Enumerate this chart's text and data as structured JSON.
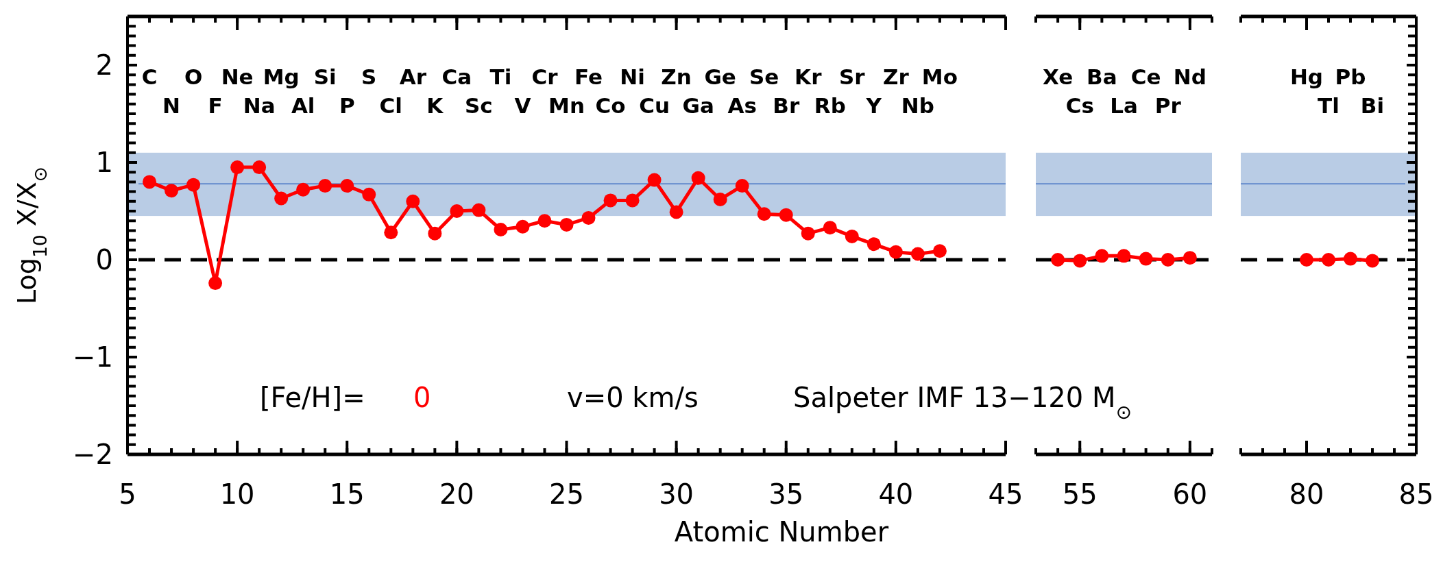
{
  "chart_data": [
    {
      "type": "line",
      "ylabel": "Log$_{10}$ X/X$_{⊙}$",
      "xlabel": "Atomic Number",
      "color": "#ff0000",
      "marker": "circle",
      "xlim": [
        5,
        45
      ],
      "xticks": [
        5,
        10,
        15,
        20,
        25,
        30,
        35,
        40,
        45
      ],
      "ylim": [
        -2,
        2.5
      ],
      "yticks": [
        -2,
        -1,
        0,
        1,
        2
      ],
      "x": [
        6,
        7,
        8,
        9,
        10,
        11,
        12,
        13,
        14,
        15,
        16,
        17,
        18,
        19,
        20,
        21,
        22,
        23,
        24,
        25,
        26,
        27,
        28,
        29,
        30,
        31,
        32,
        33,
        34,
        35,
        36,
        37,
        38,
        39,
        40,
        41,
        42
      ],
      "values": [
        0.8,
        0.71,
        0.77,
        -0.24,
        0.95,
        0.95,
        0.63,
        0.72,
        0.76,
        0.76,
        0.67,
        0.28,
        0.6,
        0.27,
        0.5,
        0.51,
        0.31,
        0.34,
        0.4,
        0.36,
        0.43,
        0.61,
        0.61,
        0.82,
        0.49,
        0.84,
        0.62,
        0.76,
        0.47,
        0.46,
        0.27,
        0.33,
        0.24,
        0.16,
        0.08,
        0.06,
        0.09
      ],
      "bands": [
        {
          "axis": "y",
          "from": 0.45,
          "to": 1.1,
          "color": "#b9cce5"
        }
      ],
      "ref_lines": [
        {
          "axis": "y",
          "value": 0,
          "line_style": "dashed",
          "color": "#000000"
        },
        {
          "axis": "y",
          "value": 0.78,
          "color": "#4472c4"
        }
      ],
      "annotations": [
        "C",
        "N",
        "O",
        "F",
        "Ne",
        "Na",
        "Mg",
        "Al",
        "Si",
        "P",
        "S",
        "Cl",
        "Ar",
        "K",
        "Ca",
        "Sc",
        "Ti",
        "V",
        "Cr",
        "Mn",
        "Fe",
        "Co",
        "Ni",
        "Cu",
        "Zn",
        "Ga",
        "Ge",
        "As",
        "Se",
        "Br",
        "Kr",
        "Rb",
        "Sr",
        "Y",
        "Zr",
        "Nb",
        "Mo",
        "[Fe/H]=",
        "0",
        "v=0 km/s",
        "Salpeter IMF 13−120 M$_{⊙}$"
      ]
    },
    {
      "type": "line",
      "color": "#ff0000",
      "marker": "circle",
      "xlim": [
        53,
        61
      ],
      "xticks": [
        55,
        60
      ],
      "ylim": [
        -2,
        2.5
      ],
      "yticks": [
        -2,
        -1,
        0,
        1,
        2
      ],
      "tick_labels": "x",
      "x": [
        54,
        55,
        56,
        57,
        58,
        59,
        60
      ],
      "values": [
        0,
        -0.01,
        0.04,
        0.04,
        0.01,
        0,
        0.02
      ],
      "bands": [
        {
          "axis": "y",
          "from": 0.45,
          "to": 1.1,
          "color": "#b9cce5"
        }
      ],
      "ref_lines": [
        {
          "axis": "y",
          "value": 0,
          "line_style": "dashed",
          "color": "#000000"
        },
        {
          "axis": "y",
          "value": 0.78,
          "color": "#4472c4"
        }
      ],
      "annotations": [
        "Xe",
        "Cs",
        "Ba",
        "La",
        "Ce",
        "Pr",
        "Nd"
      ]
    },
    {
      "type": "line",
      "color": "#ff0000",
      "marker": "circle",
      "xlim": [
        77,
        85
      ],
      "xticks": [
        80,
        85
      ],
      "ylim": [
        -2,
        2.5
      ],
      "yticks": [
        -2,
        -1,
        0,
        1,
        2
      ],
      "tick_labels": "x",
      "x": [
        80,
        81,
        82,
        83
      ],
      "values": [
        0,
        0,
        0.01,
        -0.01
      ],
      "bands": [
        {
          "axis": "y",
          "from": 0.45,
          "to": 1.1,
          "color": "#b9cce5"
        }
      ],
      "ref_lines": [
        {
          "axis": "y",
          "value": 0,
          "line_style": "dashed",
          "color": "#000000"
        },
        {
          "axis": "y",
          "value": 0.78,
          "color": "#4472c4"
        }
      ],
      "annotations": [
        "Hg",
        "Tl",
        "Pb",
        "Bi"
      ]
    }
  ]
}
